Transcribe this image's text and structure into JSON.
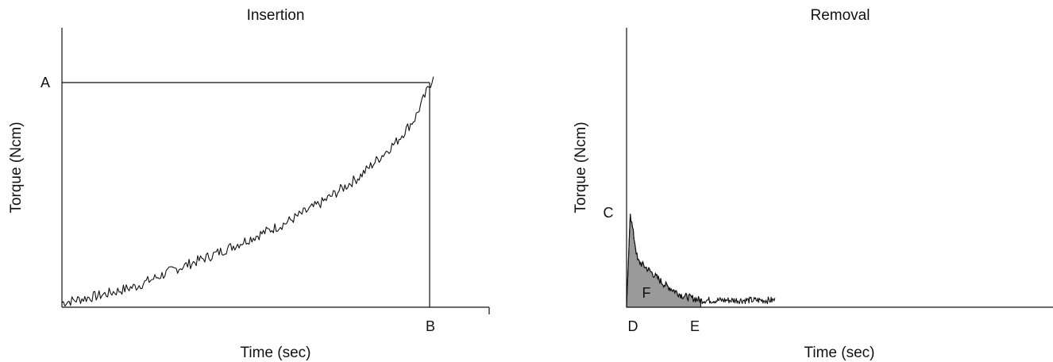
{
  "chart_data": [
    {
      "type": "line",
      "title": "Insertion",
      "xlabel": "Time (sec)",
      "ylabel": "Torque (Ncm)",
      "xlim": [
        0,
        1.15
      ],
      "ylim": [
        0,
        1.2
      ],
      "grid": false,
      "legend": "none",
      "markers": {
        "y_max": {
          "label": "A",
          "value": 1.0
        },
        "x_end": {
          "label": "B",
          "value": 1.0
        }
      },
      "series": [
        {
          "curve": "exponential-rise-with-noise",
          "x": [
            0,
            0.1,
            0.2,
            0.3,
            0.4,
            0.5,
            0.6,
            0.7,
            0.8,
            0.9,
            0.95,
            1.0
          ],
          "values": [
            0.02,
            0.05,
            0.09,
            0.16,
            0.22,
            0.29,
            0.36,
            0.45,
            0.56,
            0.71,
            0.81,
            0.99
          ]
        }
      ]
    },
    {
      "type": "area",
      "title": "Removal",
      "xlabel": "Time (sec)",
      "ylabel": "Torque (Ncm)",
      "xlim": [
        0,
        1.15
      ],
      "ylim": [
        0,
        1.2
      ],
      "grid": false,
      "legend": "none",
      "markers": {
        "peak": {
          "label": "C",
          "value": 0.4
        },
        "start": {
          "label": "D",
          "value": 0.0
        },
        "end": {
          "label": "E",
          "value": 0.2
        },
        "area": {
          "label": "F"
        }
      },
      "series": [
        {
          "curve": "sharp-peak-then-decay-with-noise",
          "x": [
            0,
            0.01,
            0.03,
            0.06,
            0.1,
            0.15,
            0.2,
            0.3,
            0.4
          ],
          "values": [
            0.0,
            0.4,
            0.2,
            0.16,
            0.1,
            0.05,
            0.03,
            0.03,
            0.03
          ]
        }
      ]
    }
  ]
}
